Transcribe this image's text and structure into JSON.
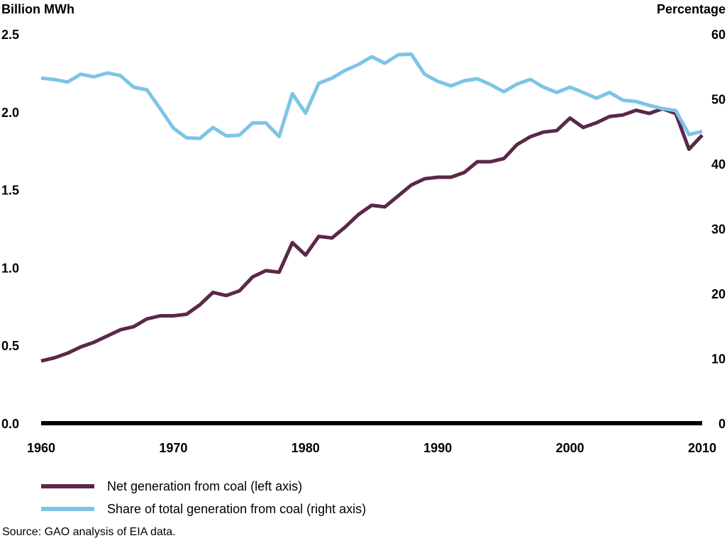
{
  "colors": {
    "coal_generation": "#5a2848",
    "coal_share": "#7ec4e6",
    "axis": "#000000"
  },
  "chart_data": {
    "type": "line",
    "left_axis_title": "Billion MWh",
    "right_axis_title": "Percentage",
    "x_ticks": [
      "1960",
      "1970",
      "1980",
      "1990",
      "2000",
      "2010"
    ],
    "y_left_ticks": [
      "0.0",
      "0.5",
      "1.0",
      "1.5",
      "2.0",
      "2.5"
    ],
    "y_right_ticks": [
      "0",
      "10",
      "20",
      "30",
      "40",
      "50",
      "60"
    ],
    "xlim": [
      1960,
      2010
    ],
    "ylim_left": [
      0,
      2.5
    ],
    "ylim_right": [
      0,
      60
    ],
    "grid": false,
    "legend_position": "bottom-left",
    "x": [
      1960,
      1961,
      1962,
      1963,
      1964,
      1965,
      1966,
      1967,
      1968,
      1969,
      1970,
      1971,
      1972,
      1973,
      1974,
      1975,
      1976,
      1977,
      1978,
      1979,
      1980,
      1981,
      1982,
      1983,
      1984,
      1985,
      1986,
      1987,
      1988,
      1989,
      1990,
      1991,
      1992,
      1993,
      1994,
      1995,
      1996,
      1997,
      1998,
      1999,
      2000,
      2001,
      2002,
      2003,
      2004,
      2005,
      2006,
      2007,
      2008,
      2009,
      2010
    ],
    "series": [
      {
        "name": "Net generation from coal (left axis)",
        "axis": "left",
        "values": [
          0.4,
          0.42,
          0.45,
          0.49,
          0.52,
          0.56,
          0.6,
          0.62,
          0.67,
          0.69,
          0.69,
          0.7,
          0.76,
          0.84,
          0.82,
          0.85,
          0.94,
          0.98,
          0.97,
          1.16,
          1.08,
          1.2,
          1.19,
          1.26,
          1.34,
          1.4,
          1.39,
          1.46,
          1.53,
          1.57,
          1.58,
          1.58,
          1.61,
          1.68,
          1.68,
          1.7,
          1.79,
          1.84,
          1.87,
          1.88,
          1.96,
          1.9,
          1.93,
          1.97,
          1.98,
          2.01,
          1.99,
          2.02,
          1.99,
          1.76,
          1.85
        ]
      },
      {
        "name": "Share of total generation from coal (right axis)",
        "axis": "right",
        "values": [
          53.2,
          53.0,
          52.6,
          53.8,
          53.4,
          54.0,
          53.6,
          51.8,
          51.4,
          48.5,
          45.5,
          44.0,
          43.9,
          45.6,
          44.3,
          44.4,
          46.3,
          46.3,
          44.2,
          50.8,
          47.8,
          52.4,
          53.2,
          54.4,
          55.3,
          56.5,
          55.5,
          56.8,
          56.9,
          53.8,
          52.7,
          52.0,
          52.8,
          53.1,
          52.2,
          51.1,
          52.3,
          53.0,
          51.8,
          51.0,
          51.8,
          51.0,
          50.1,
          51.0,
          49.8,
          49.6,
          49.0,
          48.5,
          48.2,
          44.5,
          45.0
        ]
      }
    ]
  },
  "legend": {
    "items": [
      {
        "label": "Net generation from coal (left axis)"
      },
      {
        "label": "Share of total generation from coal (right axis)"
      }
    ]
  },
  "source": "Source: GAO analysis of EIA data."
}
